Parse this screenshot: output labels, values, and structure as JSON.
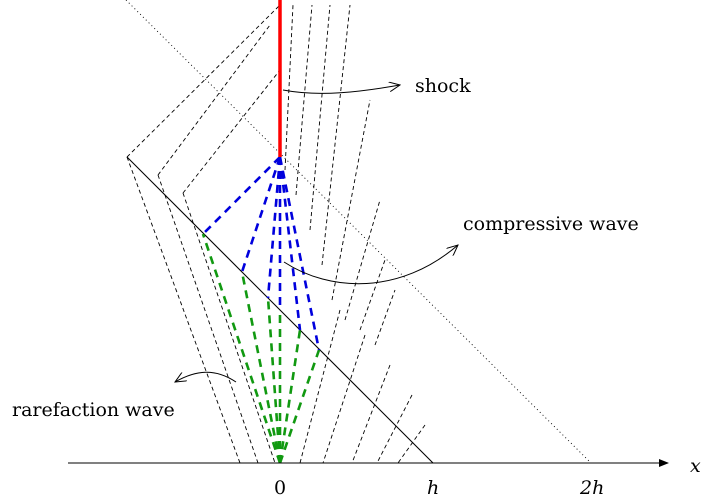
{
  "labels": {
    "shock": "shock",
    "compressive": "compressive wave",
    "rarefaction": "rarefaction wave"
  },
  "axis": {
    "x_label": "x",
    "ticks": [
      "0",
      "h",
      "2h"
    ]
  },
  "colors": {
    "shock": "#ff0000",
    "compressive": "#0000dd",
    "rarefaction": "#119911",
    "lines": "#000000"
  }
}
